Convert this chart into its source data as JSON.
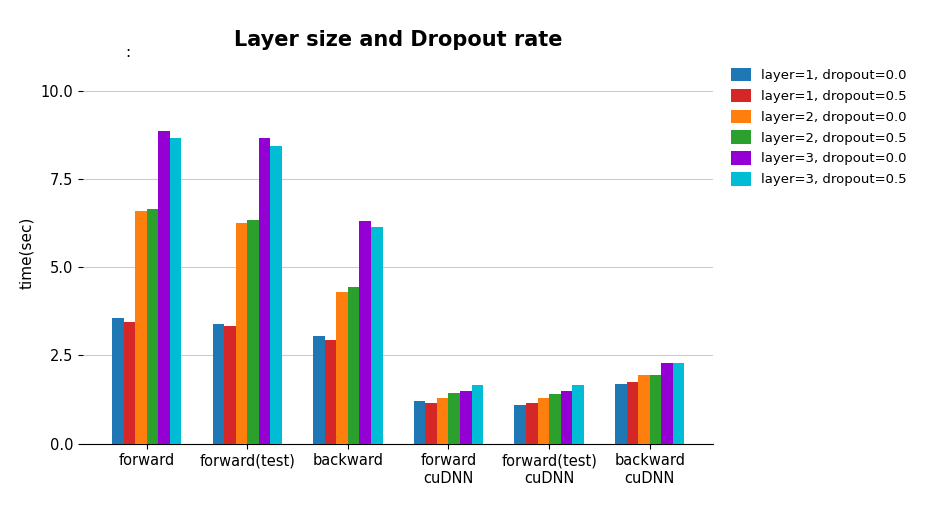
{
  "title": "Layer size and Dropout rate",
  "ylabel": "time(sec)",
  "categories": [
    "forward",
    "forward(test)",
    "backward",
    "forward\ncuDNN",
    "forward(test)\ncuDNN",
    "backward\ncuDNN"
  ],
  "series": [
    {
      "label": "layer=1, dropout=0.0",
      "color": "#1f77b4",
      "values": [
        3.55,
        3.4,
        3.05,
        1.2,
        1.1,
        1.7
      ]
    },
    {
      "label": "layer=1, dropout=0.5",
      "color": "#d62728",
      "values": [
        3.45,
        3.35,
        2.95,
        1.15,
        1.15,
        1.75
      ]
    },
    {
      "label": "layer=2, dropout=0.0",
      "color": "#ff7f0e",
      "values": [
        6.6,
        6.25,
        4.3,
        1.3,
        1.3,
        1.95
      ]
    },
    {
      "label": "layer=2, dropout=0.5",
      "color": "#2ca02c",
      "values": [
        6.65,
        6.35,
        4.45,
        1.45,
        1.4,
        1.95
      ]
    },
    {
      "label": "layer=3, dropout=0.0",
      "color": "#9400d3",
      "values": [
        8.85,
        8.65,
        6.3,
        1.5,
        1.5,
        2.3
      ]
    },
    {
      "label": "layer=3, dropout=0.5",
      "color": "#00bcd4",
      "values": [
        8.65,
        8.45,
        6.15,
        1.65,
        1.65,
        2.3
      ]
    }
  ],
  "ylim": [
    0,
    10.8
  ],
  "yticks": [
    0,
    2.5,
    5,
    7.5,
    10
  ],
  "grid_color": "#cccccc",
  "background_color": "#ffffff",
  "title_fontsize": 15,
  "subtitle": ":",
  "bar_width": 0.115,
  "figsize": [
    9.26,
    5.22
  ],
  "dpi": 100
}
